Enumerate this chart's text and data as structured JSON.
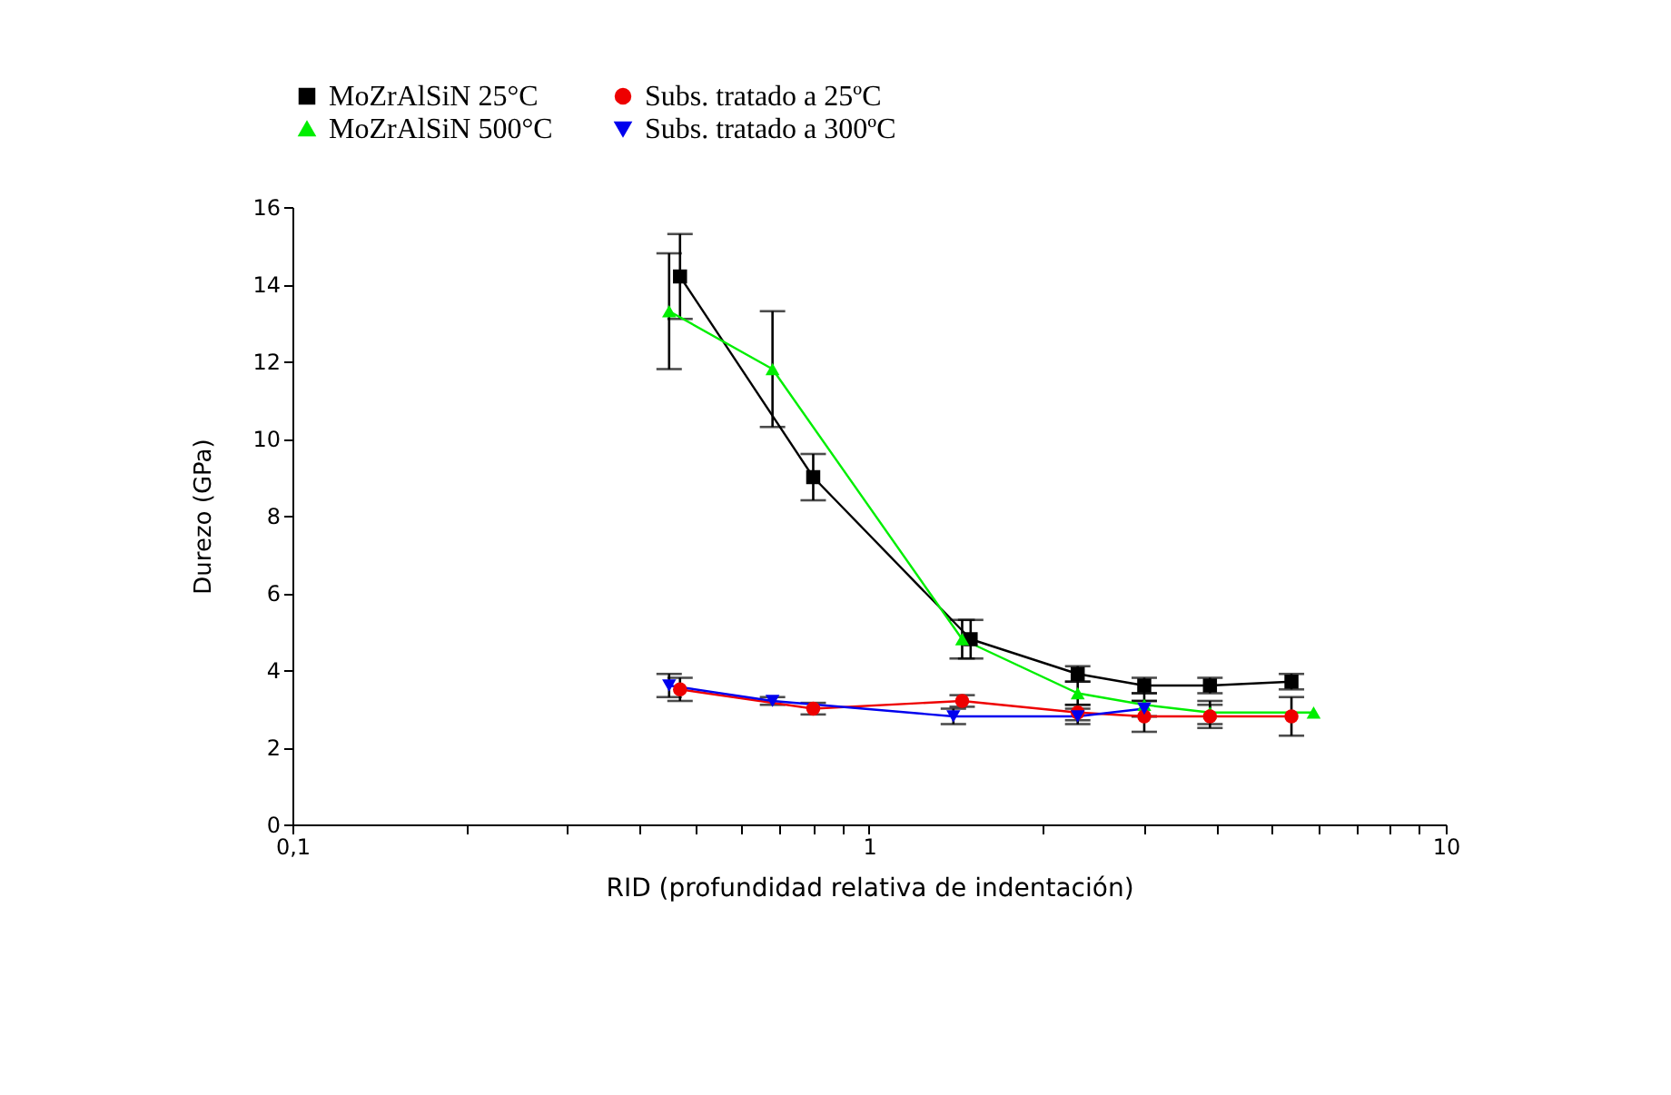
{
  "chart_data": {
    "type": "line",
    "xlabel": "RID (profundidad relativa de indentación)",
    "ylabel": "Durezo (GPa)",
    "log": "x",
    "xlim": [
      0.1,
      10
    ],
    "xticks": [
      {
        "value": 0.1,
        "label": "0,1"
      },
      {
        "value": 0.2,
        "label": null
      },
      {
        "value": 0.3,
        "label": null
      },
      {
        "value": 0.4,
        "label": null
      },
      {
        "value": 0.5,
        "label": null
      },
      {
        "value": 0.6,
        "label": null
      },
      {
        "value": 0.7,
        "label": null
      },
      {
        "value": 0.8,
        "label": null
      },
      {
        "value": 0.9,
        "label": null
      },
      1,
      {
        "value": 2,
        "label": null
      },
      {
        "value": 3,
        "label": null
      },
      {
        "value": 4,
        "label": null
      },
      {
        "value": 5,
        "label": null
      },
      {
        "value": 6,
        "label": null
      },
      {
        "value": 7,
        "label": null
      },
      {
        "value": 8,
        "label": null
      },
      {
        "value": 9,
        "label": null
      },
      10
    ],
    "ylim": [
      0,
      16
    ],
    "yticks": [
      0,
      2,
      4,
      6,
      8,
      10,
      12,
      14,
      16
    ],
    "grid": false,
    "legend": "top",
    "line_style": "solid",
    "series": [
      {
        "name": "MoZrAlSiN 25°C",
        "color": "#000000",
        "marker": "square",
        "x": [
          0.47,
          0.8,
          1.5,
          2.3,
          3.0,
          3.9,
          5.4
        ],
        "values": [
          14.2,
          9.0,
          4.8,
          3.9,
          3.6,
          3.6,
          3.7
        ],
        "errors": [
          1.1,
          0.6,
          0.5,
          0.2,
          0.2,
          0.2,
          0.2
        ]
      },
      {
        "name": "MoZrAlSiN 500°C",
        "color": "#00ee00",
        "marker": "triangle",
        "x": [
          0.45,
          0.68,
          1.45,
          2.3,
          3.0,
          3.9,
          5.9
        ],
        "values": [
          13.3,
          11.8,
          4.8,
          3.4,
          3.1,
          2.9,
          2.9
        ],
        "errors": [
          1.5,
          1.5,
          0.5,
          0.3,
          0.3,
          0.3,
          null
        ]
      },
      {
        "name": "Subs. tratado a 25ºC",
        "color": "#ee0000",
        "marker": "circle",
        "x": [
          0.47,
          0.8,
          1.45,
          2.3,
          3.0,
          3.9,
          5.4
        ],
        "values": [
          3.5,
          3.0,
          3.2,
          2.9,
          2.8,
          2.8,
          2.8
        ],
        "errors": [
          0.3,
          0.15,
          0.15,
          0.2,
          0.4,
          0.3,
          0.5
        ]
      },
      {
        "name": "Subs. tratado a 300ºC",
        "color": "#0000ee",
        "marker": "triangle-down",
        "x": [
          0.45,
          0.68,
          1.4,
          2.3,
          3.0
        ],
        "values": [
          3.6,
          3.2,
          2.8,
          2.8,
          3.0
        ],
        "errors": [
          0.3,
          0.1,
          0.2,
          0.2,
          0.2
        ]
      }
    ]
  }
}
